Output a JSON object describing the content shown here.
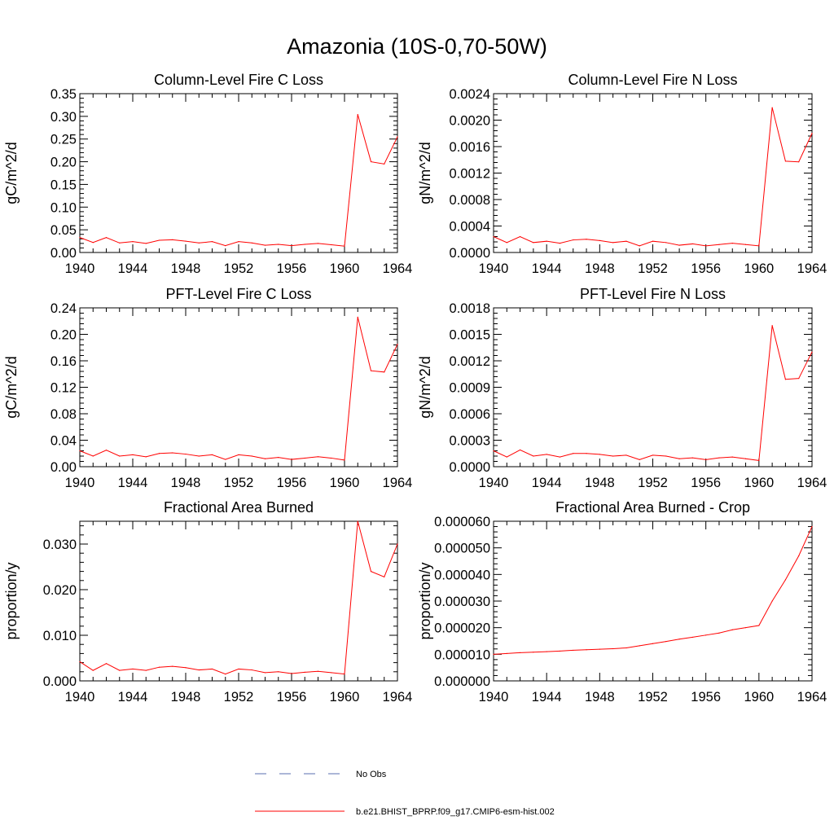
{
  "title": "Amazonia (10S-0,70-50W)",
  "legend": {
    "items": [
      {
        "label": "No Obs",
        "color": "#5a6fb0",
        "style": "dashed"
      },
      {
        "label": "b.e21.BHIST_BPRP.f09_g17.CMIP6-esm-hist.002",
        "color": "#ff0000",
        "style": "solid"
      }
    ]
  },
  "chart_data": [
    {
      "type": "line",
      "title": "Column-Level Fire C Loss",
      "xlabel": "",
      "ylabel": "gC/m^2/d",
      "xlim": [
        1940,
        1964
      ],
      "ylim": [
        0,
        0.35
      ],
      "xticks": [
        "1940",
        "1944",
        "1948",
        "1952",
        "1956",
        "1960",
        "1964"
      ],
      "yticks": [
        "0.00",
        "0.05",
        "0.10",
        "0.15",
        "0.20",
        "0.25",
        "0.30",
        "0.35"
      ],
      "series": [
        {
          "name": "b.e21.BHIST_BPRP.f09_g17.CMIP6-esm-hist.002",
          "color": "#ff0000",
          "x": [
            1940,
            1941,
            1942,
            1943,
            1944,
            1945,
            1946,
            1947,
            1948,
            1949,
            1950,
            1951,
            1952,
            1953,
            1954,
            1955,
            1956,
            1957,
            1958,
            1959,
            1960,
            1961,
            1962,
            1963,
            1964
          ],
          "values": [
            0.033,
            0.022,
            0.033,
            0.021,
            0.024,
            0.02,
            0.027,
            0.028,
            0.025,
            0.021,
            0.024,
            0.015,
            0.024,
            0.021,
            0.016,
            0.018,
            0.015,
            0.018,
            0.02,
            0.017,
            0.014,
            0.304,
            0.2,
            0.195,
            0.255
          ]
        }
      ]
    },
    {
      "type": "line",
      "title": "Column-Level Fire N Loss",
      "xlabel": "",
      "ylabel": "gN/m^2/d",
      "xlim": [
        1940,
        1964
      ],
      "ylim": [
        0,
        0.0024
      ],
      "xticks": [
        "1940",
        "1944",
        "1948",
        "1952",
        "1956",
        "1960",
        "1964"
      ],
      "yticks": [
        "0.0000",
        "0.0004",
        "0.0008",
        "0.0012",
        "0.0016",
        "0.0020",
        "0.0024"
      ],
      "series": [
        {
          "name": "b.e21.BHIST_BPRP.f09_g17.CMIP6-esm-hist.002",
          "color": "#ff0000",
          "x": [
            1940,
            1941,
            1942,
            1943,
            1944,
            1945,
            1946,
            1947,
            1948,
            1949,
            1950,
            1951,
            1952,
            1953,
            1954,
            1955,
            1956,
            1957,
            1958,
            1959,
            1960,
            1961,
            1962,
            1963,
            1964
          ],
          "values": [
            0.00024,
            0.00015,
            0.00024,
            0.00015,
            0.00017,
            0.00014,
            0.00019,
            0.0002,
            0.00018,
            0.00015,
            0.00017,
            0.0001,
            0.00017,
            0.00015,
            0.00011,
            0.00013,
            0.0001,
            0.00012,
            0.00014,
            0.00012,
            0.0001,
            0.00219,
            0.00138,
            0.00137,
            0.0018
          ]
        }
      ]
    },
    {
      "type": "line",
      "title": "PFT-Level Fire C Loss",
      "xlabel": "",
      "ylabel": "gC/m^2/d",
      "xlim": [
        1940,
        1964
      ],
      "ylim": [
        0,
        0.24
      ],
      "xticks": [
        "1940",
        "1944",
        "1948",
        "1952",
        "1956",
        "1960",
        "1964"
      ],
      "yticks": [
        "0.00",
        "0.04",
        "0.08",
        "0.12",
        "0.16",
        "0.20",
        "0.24"
      ],
      "series": [
        {
          "name": "b.e21.BHIST_BPRP.f09_g17.CMIP6-esm-hist.002",
          "color": "#ff0000",
          "x": [
            1940,
            1941,
            1942,
            1943,
            1944,
            1945,
            1946,
            1947,
            1948,
            1949,
            1950,
            1951,
            1952,
            1953,
            1954,
            1955,
            1956,
            1957,
            1958,
            1959,
            1960,
            1961,
            1962,
            1963,
            1964
          ],
          "values": [
            0.024,
            0.016,
            0.025,
            0.016,
            0.018,
            0.015,
            0.02,
            0.021,
            0.019,
            0.016,
            0.018,
            0.011,
            0.018,
            0.016,
            0.012,
            0.014,
            0.011,
            0.013,
            0.015,
            0.013,
            0.01,
            0.226,
            0.145,
            0.143,
            0.185
          ]
        }
      ]
    },
    {
      "type": "line",
      "title": "PFT-Level Fire N Loss",
      "xlabel": "",
      "ylabel": "gN/m^2/d",
      "xlim": [
        1940,
        1964
      ],
      "ylim": [
        0,
        0.0018
      ],
      "xticks": [
        "1940",
        "1944",
        "1948",
        "1952",
        "1956",
        "1960",
        "1964"
      ],
      "yticks": [
        "0.0000",
        "0.0003",
        "0.0006",
        "0.0009",
        "0.0012",
        "0.0015",
        "0.0018"
      ],
      "series": [
        {
          "name": "b.e21.BHIST_BPRP.f09_g17.CMIP6-esm-hist.002",
          "color": "#ff0000",
          "x": [
            1940,
            1941,
            1942,
            1943,
            1944,
            1945,
            1946,
            1947,
            1948,
            1949,
            1950,
            1951,
            1952,
            1953,
            1954,
            1955,
            1956,
            1957,
            1958,
            1959,
            1960,
            1961,
            1962,
            1963,
            1964
          ],
          "values": [
            0.00018,
            0.00011,
            0.00019,
            0.00012,
            0.00014,
            0.00011,
            0.00015,
            0.00015,
            0.00014,
            0.00012,
            0.00013,
            8e-05,
            0.00013,
            0.00012,
            9e-05,
            0.0001,
            8e-05,
            0.0001,
            0.00011,
            9e-05,
            7e-05,
            0.0016,
            0.00099,
            0.001,
            0.0013
          ]
        }
      ]
    },
    {
      "type": "line",
      "title": "Fractional Area Burned",
      "xlabel": "",
      "ylabel": "proportion/y",
      "xlim": [
        1940,
        1964
      ],
      "ylim": [
        0,
        0.035
      ],
      "xticks": [
        "1940",
        "1944",
        "1948",
        "1952",
        "1956",
        "1960",
        "1964"
      ],
      "yticks": [
        "0.000",
        "0.010",
        "0.020",
        "0.030"
      ],
      "series": [
        {
          "name": "b.e21.BHIST_BPRP.f09_g17.CMIP6-esm-hist.002",
          "color": "#ff0000",
          "x": [
            1940,
            1941,
            1942,
            1943,
            1944,
            1945,
            1946,
            1947,
            1948,
            1949,
            1950,
            1951,
            1952,
            1953,
            1954,
            1955,
            1956,
            1957,
            1958,
            1959,
            1960,
            1961,
            1962,
            1963,
            1964
          ],
          "values": [
            0.0042,
            0.0023,
            0.0038,
            0.0023,
            0.0026,
            0.0023,
            0.003,
            0.0032,
            0.0029,
            0.0024,
            0.0026,
            0.0015,
            0.0026,
            0.0024,
            0.0018,
            0.002,
            0.0016,
            0.0019,
            0.0021,
            0.0018,
            0.0015,
            0.035,
            0.024,
            0.0228,
            0.03
          ]
        }
      ]
    },
    {
      "type": "line",
      "title": "Fractional Area Burned - Crop",
      "xlabel": "",
      "ylabel": "proportion/y",
      "xlim": [
        1940,
        1964
      ],
      "ylim": [
        0,
        6e-05
      ],
      "xticks": [
        "1940",
        "1944",
        "1948",
        "1952",
        "1956",
        "1960",
        "1964"
      ],
      "yticks": [
        "0.000000",
        "0.000010",
        "0.000020",
        "0.000030",
        "0.000040",
        "0.000050",
        "0.000060"
      ],
      "series": [
        {
          "name": "b.e21.BHIST_BPRP.f09_g17.CMIP6-esm-hist.002",
          "color": "#ff0000",
          "x": [
            1940,
            1941,
            1942,
            1943,
            1944,
            1945,
            1946,
            1947,
            1948,
            1949,
            1950,
            1951,
            1952,
            1953,
            1954,
            1955,
            1956,
            1957,
            1958,
            1959,
            1960,
            1961,
            1962,
            1963,
            1964
          ],
          "values": [
            1e-05,
            1.03e-05,
            1.06e-05,
            1.08e-05,
            1.1e-05,
            1.12e-05,
            1.15e-05,
            1.17e-05,
            1.19e-05,
            1.21e-05,
            1.24e-05,
            1.32e-05,
            1.4e-05,
            1.48e-05,
            1.57e-05,
            1.64e-05,
            1.72e-05,
            1.8e-05,
            1.92e-05,
            2e-05,
            2.08e-05,
            3e-05,
            3.8e-05,
            4.7e-05,
            5.8e-05
          ]
        }
      ]
    }
  ]
}
